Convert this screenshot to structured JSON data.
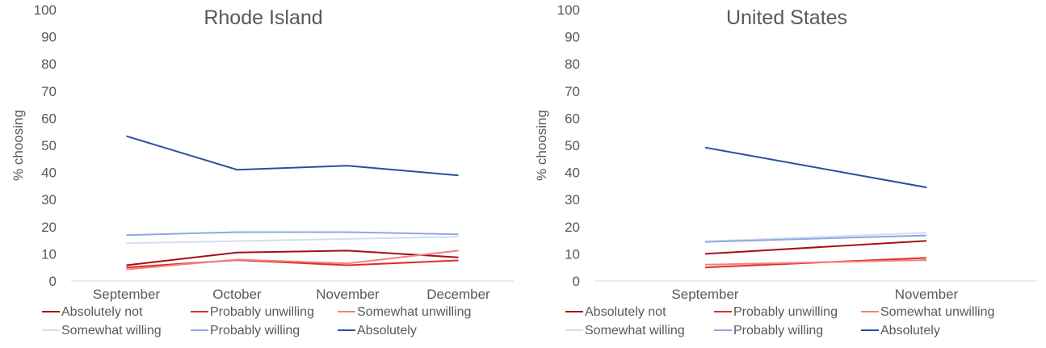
{
  "colors": {
    "absolutely_not": "#a50f15",
    "probably_unwilling": "#de2d26",
    "somewhat_unwilling": "#f28080",
    "somewhat_willing": "#d4ddf0",
    "probably_willing": "#8fa8e0",
    "absolutely": "#2a4f9a",
    "axis": "#d9d9d9",
    "text": "#595959"
  },
  "chart_data": [
    {
      "type": "line",
      "title": "Rhode Island",
      "ylabel": "% choosing",
      "xlabel": "",
      "ylim": [
        0,
        100
      ],
      "yticks": [
        "0",
        "10",
        "20",
        "30",
        "40",
        "50",
        "60",
        "70",
        "80",
        "90",
        "100"
      ],
      "categories": [
        "September",
        "October",
        "November",
        "December"
      ],
      "grid": false,
      "legend_position": "bottom",
      "series": [
        {
          "name": "Absolutely not",
          "color_key": "absolutely_not",
          "values": [
            5.8,
            10.5,
            11.2,
            8.7
          ]
        },
        {
          "name": "Probably unwilling",
          "color_key": "probably_unwilling",
          "values": [
            5.0,
            7.7,
            5.8,
            7.6
          ]
        },
        {
          "name": "Somewhat unwilling",
          "color_key": "somewhat_unwilling",
          "values": [
            4.3,
            7.9,
            6.5,
            11.2
          ]
        },
        {
          "name": "Somewhat willing",
          "color_key": "somewhat_willing",
          "values": [
            13.9,
            14.7,
            15.5,
            16.3
          ]
        },
        {
          "name": "Probably willing",
          "color_key": "probably_willing",
          "values": [
            16.9,
            18.0,
            18.0,
            17.2
          ]
        },
        {
          "name": "Absolutely",
          "color_key": "absolutely",
          "values": [
            53.4,
            41.0,
            42.5,
            38.9
          ]
        }
      ]
    },
    {
      "type": "line",
      "title": "United States",
      "ylabel": "% choosing",
      "xlabel": "",
      "ylim": [
        0,
        100
      ],
      "yticks": [
        "0",
        "10",
        "20",
        "30",
        "40",
        "50",
        "60",
        "70",
        "80",
        "90",
        "100"
      ],
      "categories": [
        "September",
        "November"
      ],
      "grid": false,
      "legend_position": "bottom",
      "series": [
        {
          "name": "Absolutely not",
          "color_key": "absolutely_not",
          "values": [
            10.0,
            14.8
          ]
        },
        {
          "name": "Probably unwilling",
          "color_key": "probably_unwilling",
          "values": [
            5.0,
            8.5
          ]
        },
        {
          "name": "Somewhat unwilling",
          "color_key": "somewhat_unwilling",
          "values": [
            6.0,
            7.7
          ]
        },
        {
          "name": "Somewhat willing",
          "color_key": "somewhat_willing",
          "values": [
            14.6,
            17.8
          ]
        },
        {
          "name": "Probably willing",
          "color_key": "probably_willing",
          "values": [
            14.4,
            16.8
          ]
        },
        {
          "name": "Absolutely",
          "color_key": "absolutely",
          "values": [
            49.2,
            34.5
          ]
        }
      ]
    }
  ]
}
